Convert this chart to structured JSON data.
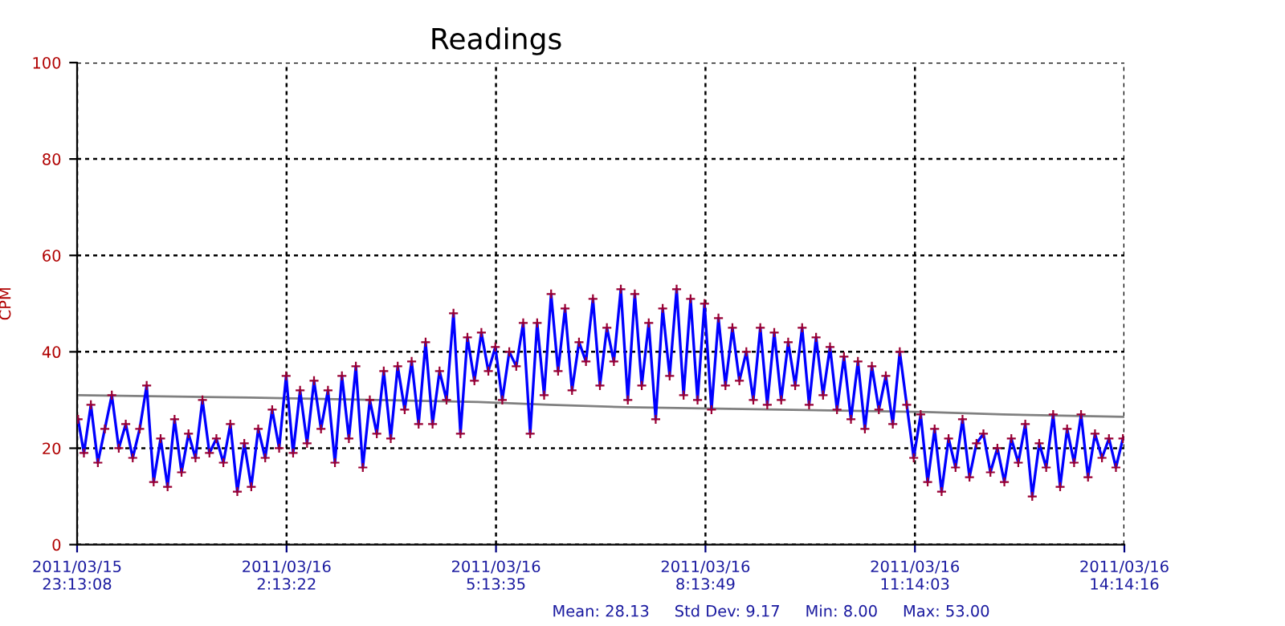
{
  "chart_data": {
    "type": "line",
    "title": "Readings",
    "ylabel": "CPM",
    "xlim": [
      "2011-03-15T23:13:08",
      "2011-03-16T14:14:16"
    ],
    "ylim": [
      0,
      100
    ],
    "yticks": [
      0,
      20,
      40,
      60,
      80,
      100
    ],
    "xticks": [
      {
        "value": "2011-03-15T23:13:08",
        "label": "2011/03/15\n23:13:08"
      },
      {
        "value": "2011-03-16T02:13:22",
        "label": "2011/03/16\n2:13:22"
      },
      {
        "value": "2011-03-16T05:13:35",
        "label": "2011/03/16\n5:13:35"
      },
      {
        "value": "2011-03-16T08:13:49",
        "label": "2011/03/16\n8:13:49"
      },
      {
        "value": "2011-03-16T11:14:03",
        "label": "2011/03/16\n11:14:03"
      },
      {
        "value": "2011-03-16T14:14:16",
        "label": "2011/03/16\n14:14:16"
      }
    ],
    "grid": true,
    "legend": false,
    "line_style": "solid",
    "series": [
      {
        "color": "#0000ff",
        "marker": "cross",
        "x": [
          "2011-03-15T23:14",
          "2011-03-15T23:19",
          "2011-03-15T23:25",
          "2011-03-15T23:31",
          "2011-03-15T23:37",
          "2011-03-15T23:43",
          "2011-03-15T23:49",
          "2011-03-15T23:55",
          "2011-03-16T00:01",
          "2011-03-16T00:07",
          "2011-03-16T00:13",
          "2011-03-16T00:19",
          "2011-03-16T00:25",
          "2011-03-16T00:31",
          "2011-03-16T00:37",
          "2011-03-16T00:43",
          "2011-03-16T00:49",
          "2011-03-16T00:55",
          "2011-03-16T01:01",
          "2011-03-16T01:07",
          "2011-03-16T01:13",
          "2011-03-16T01:19",
          "2011-03-16T01:25",
          "2011-03-16T01:31",
          "2011-03-16T01:37",
          "2011-03-16T01:43",
          "2011-03-16T01:49",
          "2011-03-16T01:55",
          "2011-03-16T02:01",
          "2011-03-16T02:07",
          "2011-03-16T02:13",
          "2011-03-16T02:19",
          "2011-03-16T02:25",
          "2011-03-16T02:31",
          "2011-03-16T02:37",
          "2011-03-16T02:43",
          "2011-03-16T02:49",
          "2011-03-16T02:55",
          "2011-03-16T03:01",
          "2011-03-16T03:07",
          "2011-03-16T03:13",
          "2011-03-16T03:19",
          "2011-03-16T03:25",
          "2011-03-16T03:31",
          "2011-03-16T03:37",
          "2011-03-16T03:43",
          "2011-03-16T03:49",
          "2011-03-16T03:55",
          "2011-03-16T04:01",
          "2011-03-16T04:07",
          "2011-03-16T04:13",
          "2011-03-16T04:19",
          "2011-03-16T04:25",
          "2011-03-16T04:31",
          "2011-03-16T04:37",
          "2011-03-16T04:43",
          "2011-03-16T04:49",
          "2011-03-16T04:55",
          "2011-03-16T05:01",
          "2011-03-16T05:07",
          "2011-03-16T05:13",
          "2011-03-16T05:19",
          "2011-03-16T05:25",
          "2011-03-16T05:31",
          "2011-03-16T05:37",
          "2011-03-16T05:43",
          "2011-03-16T05:49",
          "2011-03-16T05:55",
          "2011-03-16T06:01",
          "2011-03-16T06:07",
          "2011-03-16T06:13",
          "2011-03-16T06:19",
          "2011-03-16T06:25",
          "2011-03-16T06:31",
          "2011-03-16T06:37",
          "2011-03-16T06:43",
          "2011-03-16T06:49",
          "2011-03-16T06:55",
          "2011-03-16T07:01",
          "2011-03-16T07:07",
          "2011-03-16T07:13",
          "2011-03-16T07:19",
          "2011-03-16T07:25",
          "2011-03-16T07:31",
          "2011-03-16T07:37",
          "2011-03-16T07:43",
          "2011-03-16T07:49",
          "2011-03-16T07:55",
          "2011-03-16T08:01",
          "2011-03-16T08:07",
          "2011-03-16T08:13",
          "2011-03-16T08:19",
          "2011-03-16T08:25",
          "2011-03-16T08:31",
          "2011-03-16T08:37",
          "2011-03-16T08:43",
          "2011-03-16T08:49",
          "2011-03-16T08:55",
          "2011-03-16T09:01",
          "2011-03-16T09:07",
          "2011-03-16T09:13",
          "2011-03-16T09:19",
          "2011-03-16T09:25",
          "2011-03-16T09:31",
          "2011-03-16T09:37",
          "2011-03-16T09:43",
          "2011-03-16T09:49",
          "2011-03-16T09:55",
          "2011-03-16T10:01",
          "2011-03-16T10:07",
          "2011-03-16T10:13",
          "2011-03-16T10:19",
          "2011-03-16T10:25",
          "2011-03-16T10:31",
          "2011-03-16T10:37",
          "2011-03-16T10:43",
          "2011-03-16T10:49",
          "2011-03-16T10:55",
          "2011-03-16T11:01",
          "2011-03-16T11:07",
          "2011-03-16T11:13",
          "2011-03-16T11:19",
          "2011-03-16T11:25",
          "2011-03-16T11:31",
          "2011-03-16T11:37",
          "2011-03-16T11:43",
          "2011-03-16T11:49",
          "2011-03-16T11:55",
          "2011-03-16T12:01",
          "2011-03-16T12:07",
          "2011-03-16T12:13",
          "2011-03-16T12:19",
          "2011-03-16T12:25",
          "2011-03-16T12:31",
          "2011-03-16T12:37",
          "2011-03-16T12:43",
          "2011-03-16T12:49",
          "2011-03-16T12:55",
          "2011-03-16T13:01",
          "2011-03-16T13:07",
          "2011-03-16T13:13",
          "2011-03-16T13:19",
          "2011-03-16T13:25",
          "2011-03-16T13:31",
          "2011-03-16T13:37",
          "2011-03-16T13:43",
          "2011-03-16T13:49",
          "2011-03-16T13:55",
          "2011-03-16T14:01",
          "2011-03-16T14:07",
          "2011-03-16T14:13"
        ],
        "values": [
          26,
          19,
          29,
          17,
          24,
          31,
          20,
          25,
          18,
          24,
          33,
          13,
          22,
          12,
          26,
          15,
          23,
          18,
          30,
          19,
          22,
          17,
          25,
          11,
          21,
          12,
          24,
          18,
          28,
          20,
          35,
          19,
          32,
          21,
          34,
          24,
          32,
          17,
          35,
          22,
          37,
          16,
          30,
          23,
          36,
          22,
          37,
          28,
          38,
          25,
          42,
          25,
          36,
          30,
          48,
          23,
          43,
          34,
          44,
          36,
          41,
          30,
          40,
          37,
          46,
          23,
          46,
          31,
          52,
          36,
          49,
          32,
          42,
          38,
          51,
          33,
          45,
          38,
          53,
          30,
          52,
          33,
          46,
          26,
          49,
          35,
          53,
          31,
          51,
          30,
          50,
          28,
          47,
          33,
          45,
          34,
          40,
          30,
          45,
          29,
          44,
          30,
          42,
          33,
          45,
          29,
          43,
          31,
          41,
          28,
          39,
          26,
          38,
          24,
          37,
          28,
          35,
          25,
          40,
          29,
          18,
          27,
          13,
          24,
          11,
          22,
          16,
          26,
          14,
          21,
          23,
          15,
          20,
          13,
          22,
          17,
          25,
          10,
          21,
          16,
          27,
          12,
          24,
          17,
          27,
          14,
          23,
          18,
          22,
          16,
          22
        ]
      },
      {
        "color": "#808080",
        "marker": "none",
        "x": [
          "2011-03-15T23:14",
          "2011-03-16T01:42",
          "2011-03-16T04:58",
          "2011-03-16T06:00",
          "2011-03-16T07:06",
          "2011-03-16T09:18",
          "2011-03-16T11:24",
          "2011-03-16T12:30",
          "2011-03-16T14:14"
        ],
        "values": [
          31,
          30.5,
          29.6,
          29,
          28.5,
          28,
          27.5,
          27,
          26.5
        ]
      }
    ],
    "annotations": [
      "Mean: 28.13     Std Dev: 9.17     Min: 8.00     Max: 53.00"
    ]
  }
}
